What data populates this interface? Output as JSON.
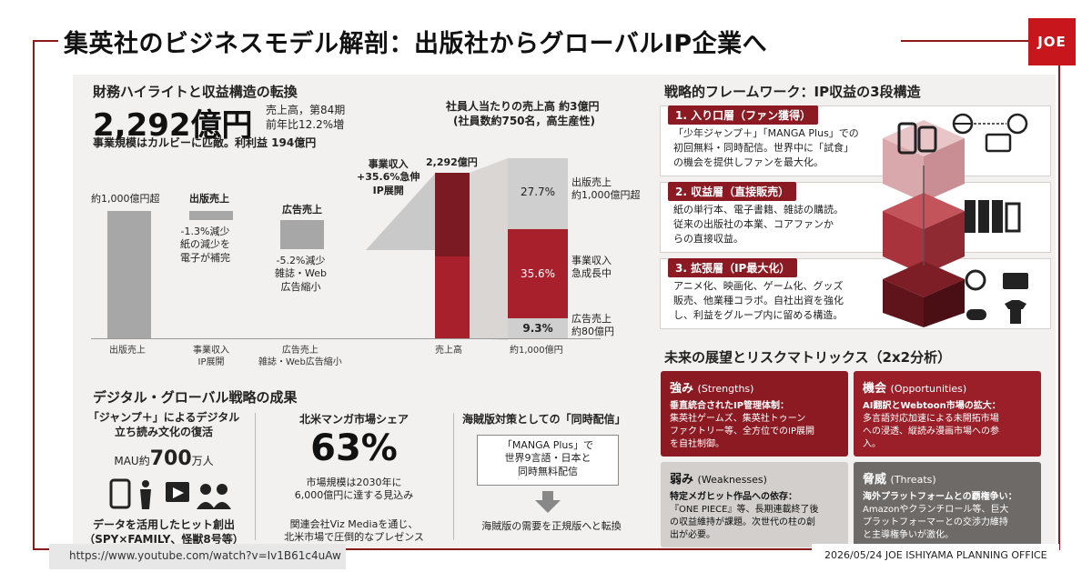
{
  "title": "集英社のビジネスモデル解剖：出版社からグローバルIP企業へ",
  "logo": "JOE",
  "finance": {
    "heading": "財務ハイライトと収益構造の転換",
    "big": "2,292億円",
    "big_note1": "売上高，第84期",
    "big_note2": "前年比12.2%増",
    "scale_note": "事業規模はカルビーに匹敵。利利益 194億円",
    "per_emp1": "社員人当たりの売上高 約3億円",
    "per_emp2": "(社員数約750名，高生産性)",
    "wf_start_label": "約1,000億円超",
    "wf_pub_label": "出版売上",
    "wf_pub_note1": "-1.3%減少",
    "wf_pub_note2": "紙の減少を",
    "wf_pub_note3": "電子が補完",
    "wf_ad_label": "広告売上",
    "wf_ad_note1": "-5.2%減少",
    "wf_ad_note2": "雑誌・Web",
    "wf_ad_note3": "広告縮小",
    "wf_ip_note1": "事業収入",
    "wf_ip_note2": "+35.6%急伸",
    "wf_ip_note3": "IP展開",
    "wf_total_top": "2,292億円",
    "axis1": "出版売上",
    "axis2a": "事業収入",
    "axis2b": "IP展開",
    "axis3a": "広告売上",
    "axis3b": "雑誌・Web広告縮小",
    "axis4": "売上高",
    "axis5": "約1,000億円",
    "seg_pub_pct": "27.7%",
    "seg_ip_pct": "35.6%",
    "seg_ad_pct": "9.3%",
    "seg_pub_r1": "出版売上",
    "seg_pub_r2": "約1,000億円超",
    "seg_ip_r1": "事業収入",
    "seg_ip_r2": "急成長中",
    "seg_ad_r1": "広告売上",
    "seg_ad_r2": "約80億円"
  },
  "digital": {
    "heading": "デジタル・グローバル戦略の成果",
    "jump1": "「ジャンプ＋」によるデジタル",
    "jump2": "立ち読み文化の復活",
    "mau_prefix": "MAU約",
    "mau_num": "700",
    "mau_suffix": "万人",
    "data1": "データを活用したヒット創出",
    "data2": "（SPY×FAMILY、怪獣8号等）",
    "na_title": "北米マンガ市場シェア",
    "na_pct": "63%",
    "na_note1": "市場規模は2030年に",
    "na_note2": "6,000億円に達する見込み",
    "na_note3": "関連会社Viz Mediaを通じ、",
    "na_note4": "北米市場で圧倒的なプレゼンス",
    "pir_title": "海賊版対策としての「同時配信」",
    "pir_box1": "「MANGA Plus」で",
    "pir_box2": "世界9言語・日本と",
    "pir_box3": "同時無料配信",
    "pir_note": "海賊版の需要を正規版へと転換"
  },
  "framework": {
    "heading": "戦略的フレームワーク：IP収益の3段構造",
    "tiers": [
      {
        "label": "1. 入り口層（ファン獲得）",
        "l1": "「少年ジャンプ＋」「MANGA Plus」での",
        "l2": "初回無料・同時配信。世界中に「試食」",
        "l3": "の機会を提供しファンを最大化。"
      },
      {
        "label": "2. 収益層（直接販売）",
        "l1": "紙の単行本、電子書籍、雑誌の購読。",
        "l2": "従来の出版社の本業、コアファンか",
        "l3": "らの直接収益。"
      },
      {
        "label": "3. 拡張層（IP最大化）",
        "l1": "アニメ化、映画化、ゲーム化、グッズ",
        "l2": "販売、他業種コラボ。自社出資を強化",
        "l3": "し、利益をグループ内に留める構造。"
      }
    ]
  },
  "swot": {
    "heading": "未来の展望とリスクマトリックス（2x2分析）",
    "s": {
      "title": "強み",
      "en": "(Strengths)",
      "b1": "垂直統合されたIP管理体制：",
      "b2": "集英社ゲームズ、集英社トゥーン",
      "b3": "ファクトリー等、全方位でのIP展開",
      "b4": "を自社制御。"
    },
    "o": {
      "title": "機会",
      "en": "(Opportunities)",
      "b1": "AI翻訳とWebtoon市場の拡大：",
      "b2": "多言語対応加速による未開拓市場",
      "b3": "への浸透、縦読み漫画市場への参",
      "b4": "入。"
    },
    "w": {
      "title": "弱み",
      "en": "(Weaknesses)",
      "b1": "特定メガヒット作品への依存：",
      "b2": "『ONE PIECE』等、長期連載終了後",
      "b3": "の収益維持が課題。次世代の柱の創",
      "b4": "出が必要。"
    },
    "t": {
      "title": "脅威",
      "en": "(Threats)",
      "b1": "海外プラットフォームとの覇権争い：",
      "b2": "Amazonやクランチロール等、巨大",
      "b3": "プラットフォーマーとの交渉力維持",
      "b4": "と主導権争いが激化。"
    }
  },
  "footer": {
    "url": "https://www.youtube.com/watch?v=Iv1B61c4uAw",
    "credit": "2026/05/24 JOE ISHIYAMA PLANNING OFFICE"
  },
  "colors": {
    "accent": "#8b1a22",
    "red": "#a8202c",
    "gray": "#a7a7a7"
  }
}
